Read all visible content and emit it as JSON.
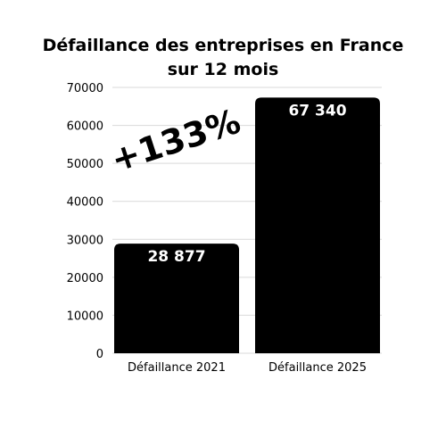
{
  "chart_data": {
    "type": "bar",
    "title_line1": "Défaillance des entreprises en France",
    "title_line2": "sur 12 mois",
    "categories": [
      "Défaillance 2021",
      "Défaillance 2025"
    ],
    "values": [
      28877,
      67340
    ],
    "value_labels": [
      "28 877",
      "67 340"
    ],
    "yticks": [
      0,
      10000,
      20000,
      30000,
      40000,
      50000,
      60000,
      70000
    ],
    "ylim": [
      0,
      70000
    ],
    "grid": true,
    "annotation": "+133%",
    "bar_color": "#000000",
    "grid_color": "#d9d9d9"
  }
}
